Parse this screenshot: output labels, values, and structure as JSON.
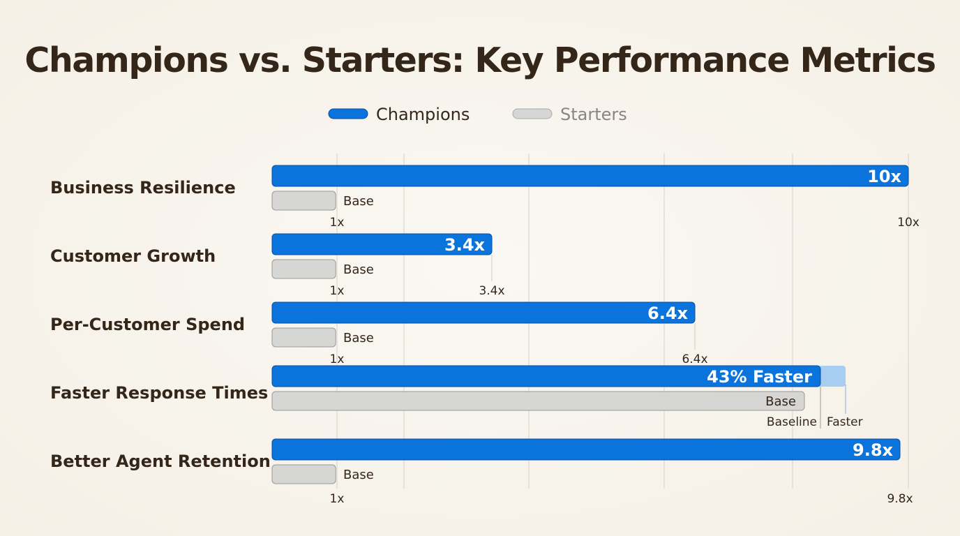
{
  "chart_data": {
    "type": "bar",
    "orientation": "horizontal",
    "title": "Champions vs. Starters: Key Performance Metrics",
    "legend": {
      "placement": "top-center",
      "entries": [
        "Champions",
        "Starters"
      ]
    },
    "colors": {
      "Champions": "#0a74dc",
      "Starters": "#d6d6d4",
      "faster_extension": "#a8cdf2"
    },
    "categories": [
      "Business Resilience",
      "Customer Growth",
      "Per-Customer Spend",
      "Faster Response Times",
      "Better Agent Retention"
    ],
    "series": [
      {
        "name": "Champions",
        "values": [
          10,
          3.4,
          6.4,
          null,
          9.8
        ],
        "data_labels": [
          "10x",
          "3.4x",
          "6.4x",
          "43% Faster",
          "9.8x"
        ]
      },
      {
        "name": "Starters",
        "values": [
          1,
          1,
          1,
          null,
          1
        ],
        "data_labels": [
          "Base",
          "Base",
          "Base",
          "Base",
          "Base"
        ]
      }
    ],
    "tick_labels": [
      [
        "1x",
        "10x"
      ],
      [
        "1x",
        "3.4x"
      ],
      [
        "1x",
        "6.4x"
      ],
      [
        "Baseline",
        "Faster"
      ],
      [
        "1x",
        "9.8x"
      ]
    ],
    "grid": true
  }
}
